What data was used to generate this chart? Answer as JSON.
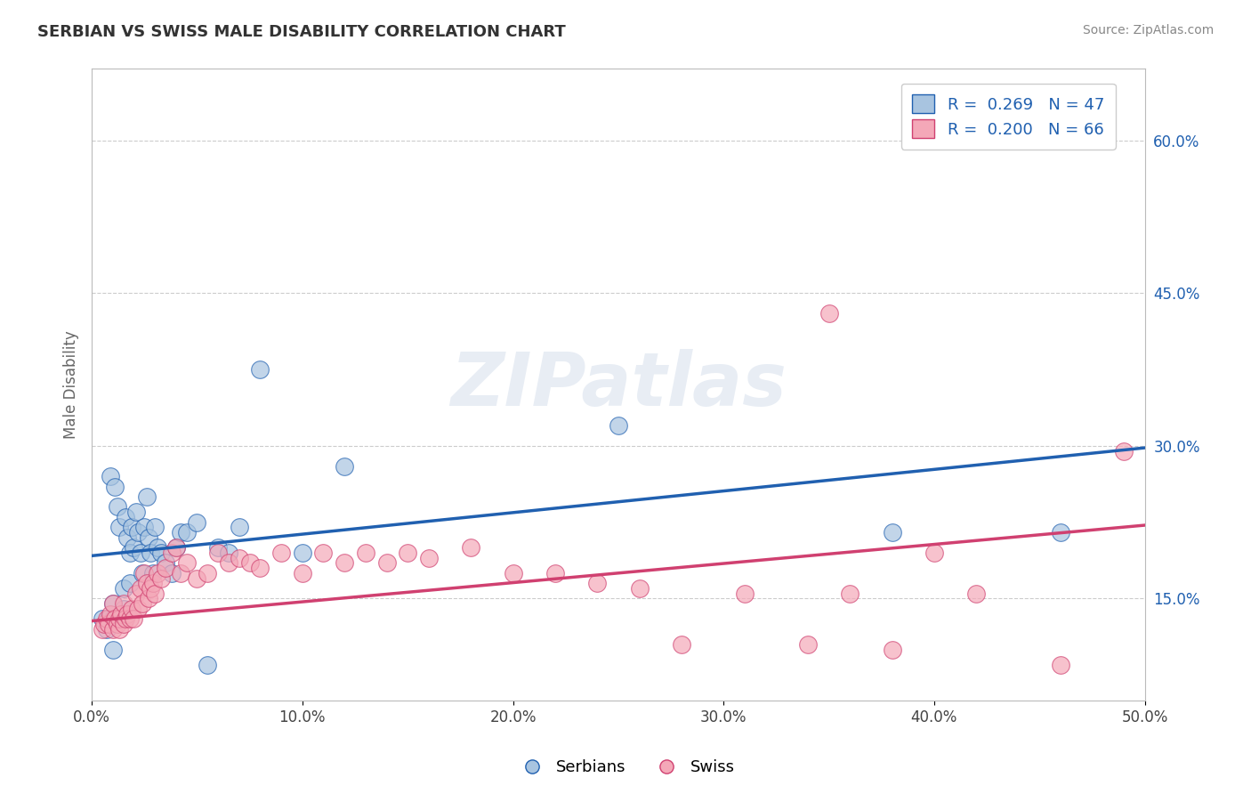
{
  "title": "SERBIAN VS SWISS MALE DISABILITY CORRELATION CHART",
  "source": "Source: ZipAtlas.com",
  "ylabel": "Male Disability",
  "xlim": [
    0.0,
    0.5
  ],
  "ylim": [
    0.05,
    0.67
  ],
  "xtick_labels": [
    "0.0%",
    "10.0%",
    "20.0%",
    "30.0%",
    "40.0%",
    "50.0%"
  ],
  "xtick_vals": [
    0.0,
    0.1,
    0.2,
    0.3,
    0.4,
    0.5
  ],
  "ytick_labels": [
    "15.0%",
    "30.0%",
    "45.0%",
    "60.0%"
  ],
  "ytick_vals": [
    0.15,
    0.3,
    0.45,
    0.6
  ],
  "grid_color": "#cccccc",
  "background_color": "#ffffff",
  "serbians_color": "#a8c4e0",
  "swiss_color": "#f4a8b8",
  "serbian_line_color": "#2060b0",
  "swiss_line_color": "#d04070",
  "watermark": "ZIPatlas",
  "legend_serbian_r": "0.269",
  "legend_serbian_n": "47",
  "legend_swiss_r": "0.200",
  "legend_swiss_n": "66",
  "serbian_trend": [
    0.0,
    0.5,
    0.192,
    0.298
  ],
  "swiss_trend": [
    0.0,
    0.5,
    0.128,
    0.222
  ],
  "serbians_x": [
    0.005,
    0.007,
    0.008,
    0.009,
    0.01,
    0.01,
    0.01,
    0.011,
    0.012,
    0.013,
    0.014,
    0.015,
    0.015,
    0.016,
    0.017,
    0.018,
    0.018,
    0.019,
    0.02,
    0.021,
    0.022,
    0.023,
    0.024,
    0.025,
    0.026,
    0.027,
    0.028,
    0.029,
    0.03,
    0.031,
    0.033,
    0.035,
    0.038,
    0.04,
    0.042,
    0.045,
    0.05,
    0.055,
    0.06,
    0.065,
    0.07,
    0.08,
    0.1,
    0.12,
    0.25,
    0.38,
    0.46
  ],
  "serbians_y": [
    0.13,
    0.12,
    0.13,
    0.27,
    0.13,
    0.145,
    0.1,
    0.26,
    0.24,
    0.22,
    0.135,
    0.14,
    0.16,
    0.23,
    0.21,
    0.165,
    0.195,
    0.22,
    0.2,
    0.235,
    0.215,
    0.195,
    0.175,
    0.22,
    0.25,
    0.21,
    0.195,
    0.175,
    0.22,
    0.2,
    0.195,
    0.185,
    0.175,
    0.2,
    0.215,
    0.215,
    0.225,
    0.085,
    0.2,
    0.195,
    0.22,
    0.375,
    0.195,
    0.28,
    0.32,
    0.215,
    0.215
  ],
  "swiss_x": [
    0.005,
    0.006,
    0.007,
    0.008,
    0.009,
    0.01,
    0.01,
    0.011,
    0.012,
    0.013,
    0.013,
    0.014,
    0.015,
    0.015,
    0.016,
    0.017,
    0.018,
    0.019,
    0.02,
    0.021,
    0.022,
    0.023,
    0.024,
    0.025,
    0.026,
    0.027,
    0.028,
    0.029,
    0.03,
    0.031,
    0.033,
    0.035,
    0.038,
    0.04,
    0.042,
    0.045,
    0.05,
    0.055,
    0.06,
    0.065,
    0.07,
    0.075,
    0.08,
    0.09,
    0.1,
    0.11,
    0.12,
    0.13,
    0.14,
    0.15,
    0.16,
    0.18,
    0.2,
    0.22,
    0.24,
    0.26,
    0.28,
    0.31,
    0.34,
    0.35,
    0.36,
    0.38,
    0.4,
    0.42,
    0.46,
    0.49
  ],
  "swiss_y": [
    0.12,
    0.125,
    0.13,
    0.125,
    0.135,
    0.12,
    0.145,
    0.13,
    0.125,
    0.12,
    0.13,
    0.135,
    0.125,
    0.145,
    0.13,
    0.135,
    0.13,
    0.14,
    0.13,
    0.155,
    0.14,
    0.16,
    0.145,
    0.175,
    0.165,
    0.15,
    0.16,
    0.165,
    0.155,
    0.175,
    0.17,
    0.18,
    0.195,
    0.2,
    0.175,
    0.185,
    0.17,
    0.175,
    0.195,
    0.185,
    0.19,
    0.185,
    0.18,
    0.195,
    0.175,
    0.195,
    0.185,
    0.195,
    0.185,
    0.195,
    0.19,
    0.2,
    0.175,
    0.175,
    0.165,
    0.16,
    0.105,
    0.155,
    0.105,
    0.43,
    0.155,
    0.1,
    0.195,
    0.155,
    0.085,
    0.295
  ]
}
